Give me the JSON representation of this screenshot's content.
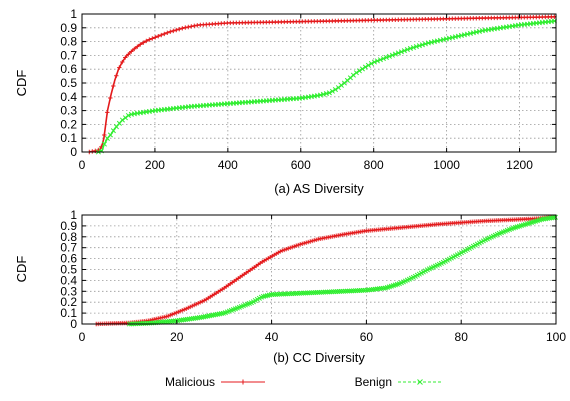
{
  "colors": {
    "malicious": "#e41a1c",
    "benign": "#33ee33"
  },
  "legend": {
    "items": [
      {
        "name": "Malicious",
        "marker": "plus"
      },
      {
        "name": "Benign",
        "marker": "cross"
      }
    ]
  },
  "chart_data": [
    {
      "type": "line",
      "title": "",
      "caption": "(a) AS Diversity",
      "xlabel": "",
      "ylabel": "CDF",
      "xlim": [
        0,
        1300
      ],
      "ylim": [
        0,
        1
      ],
      "xticks": [
        0,
        200,
        400,
        600,
        800,
        1000,
        1200
      ],
      "yticks": [
        0,
        0.1,
        0.2,
        0.3,
        0.4,
        0.5,
        0.6,
        0.7,
        0.8,
        0.9,
        1
      ],
      "grid": true,
      "series": [
        {
          "name": "Malicious",
          "x": [
            20,
            40,
            50,
            55,
            60,
            65,
            70,
            80,
            90,
            100,
            110,
            120,
            140,
            160,
            180,
            200,
            240,
            280,
            320,
            400,
            500,
            600,
            700,
            800,
            900,
            1000,
            1100,
            1200,
            1300
          ],
          "y": [
            0,
            0.01,
            0.02,
            0.05,
            0.1,
            0.2,
            0.3,
            0.42,
            0.52,
            0.6,
            0.65,
            0.69,
            0.74,
            0.78,
            0.81,
            0.83,
            0.87,
            0.9,
            0.92,
            0.935,
            0.94,
            0.945,
            0.95,
            0.955,
            0.96,
            0.965,
            0.97,
            0.975,
            0.98
          ]
        },
        {
          "name": "Benign",
          "x": [
            45,
            55,
            60,
            70,
            80,
            90,
            100,
            110,
            120,
            130,
            150,
            200,
            300,
            400,
            500,
            600,
            650,
            680,
            700,
            720,
            750,
            780,
            800,
            850,
            900,
            950,
            1000,
            1100,
            1200,
            1300
          ],
          "y": [
            0,
            0.01,
            0.05,
            0.1,
            0.13,
            0.17,
            0.2,
            0.23,
            0.25,
            0.27,
            0.28,
            0.3,
            0.33,
            0.35,
            0.37,
            0.39,
            0.41,
            0.43,
            0.46,
            0.5,
            0.57,
            0.62,
            0.65,
            0.7,
            0.75,
            0.79,
            0.82,
            0.88,
            0.92,
            0.95
          ]
        }
      ]
    },
    {
      "type": "line",
      "title": "",
      "caption": "(b) CC Diversity",
      "xlabel": "",
      "ylabel": "CDF",
      "xlim": [
        0,
        100
      ],
      "ylim": [
        0,
        1
      ],
      "xticks": [
        0,
        20,
        40,
        60,
        80,
        100
      ],
      "yticks": [
        0,
        0.1,
        0.2,
        0.3,
        0.4,
        0.5,
        0.6,
        0.7,
        0.8,
        0.9,
        1
      ],
      "grid": true,
      "series": [
        {
          "name": "Malicious",
          "x": [
            3,
            6,
            10,
            14,
            18,
            22,
            26,
            30,
            34,
            38,
            42,
            46,
            50,
            55,
            60,
            65,
            70,
            75,
            80,
            85,
            90,
            95,
            100
          ],
          "y": [
            0,
            0.005,
            0.01,
            0.03,
            0.07,
            0.14,
            0.22,
            0.33,
            0.45,
            0.57,
            0.67,
            0.73,
            0.78,
            0.82,
            0.855,
            0.875,
            0.895,
            0.915,
            0.93,
            0.945,
            0.955,
            0.965,
            0.98
          ]
        },
        {
          "name": "Benign",
          "x": [
            10,
            15,
            20,
            25,
            30,
            33,
            36,
            38,
            40,
            45,
            50,
            55,
            60,
            64,
            67,
            70,
            73,
            76,
            79,
            82,
            85,
            88,
            91,
            94,
            97,
            100
          ],
          "y": [
            0,
            0.01,
            0.03,
            0.06,
            0.1,
            0.15,
            0.2,
            0.25,
            0.27,
            0.28,
            0.29,
            0.3,
            0.31,
            0.33,
            0.37,
            0.43,
            0.5,
            0.56,
            0.63,
            0.7,
            0.77,
            0.83,
            0.88,
            0.92,
            0.96,
            0.98
          ]
        }
      ]
    }
  ]
}
